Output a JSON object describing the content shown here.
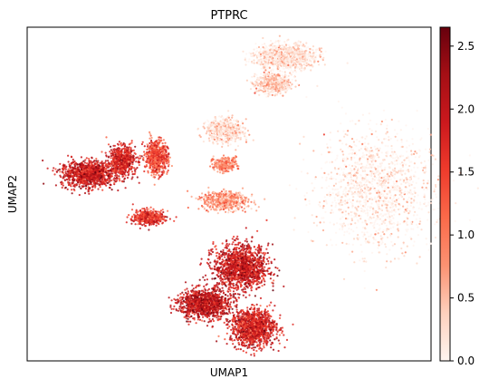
{
  "chart_data": {
    "type": "scatter",
    "title": "PTPRC",
    "xlabel": "UMAP1",
    "ylabel": "UMAP2",
    "grid": false,
    "legend": "colorbar-right",
    "colormap": {
      "name": "Reds",
      "colors": [
        "#fff5f0",
        "#fdd0bd",
        "#fc9272",
        "#fb6a4a",
        "#ef3b2c",
        "#cb181d",
        "#a50f15",
        "#67000d"
      ]
    },
    "colorbar": {
      "range": [
        0,
        2.65
      ],
      "ticks": [
        0.0,
        0.5,
        1.0,
        1.5,
        2.0,
        2.5
      ],
      "tick_labels": [
        "0.0",
        "0.5",
        "1.0",
        "1.5",
        "2.0",
        "2.5"
      ]
    },
    "xlim": [
      0,
      1
    ],
    "ylim": [
      0,
      1
    ],
    "clusters": [
      {
        "id": "left-large",
        "cx": 0.15,
        "cy": 0.56,
        "rx": 0.06,
        "ry": 0.035,
        "expression": 1.9
      },
      {
        "id": "left-wing-top",
        "cx": 0.235,
        "cy": 0.6,
        "rx": 0.03,
        "ry": 0.04,
        "expression": 1.8
      },
      {
        "id": "center-small",
        "cx": 0.32,
        "cy": 0.61,
        "rx": 0.025,
        "ry": 0.045,
        "expression": 1.4
      },
      {
        "id": "left-low",
        "cx": 0.3,
        "cy": 0.43,
        "rx": 0.035,
        "ry": 0.02,
        "expression": 1.6
      },
      {
        "id": "bottom-left",
        "cx": 0.44,
        "cy": 0.17,
        "rx": 0.055,
        "ry": 0.04,
        "expression": 2.0
      },
      {
        "id": "bottom-wing",
        "cx": 0.53,
        "cy": 0.28,
        "rx": 0.06,
        "ry": 0.06,
        "expression": 1.9
      },
      {
        "id": "bottom-lower",
        "cx": 0.56,
        "cy": 0.1,
        "rx": 0.05,
        "ry": 0.05,
        "expression": 1.8
      },
      {
        "id": "right-large",
        "cx": 0.86,
        "cy": 0.51,
        "rx": 0.13,
        "ry": 0.16,
        "expression": 0.05
      },
      {
        "id": "top-right-1",
        "cx": 0.64,
        "cy": 0.91,
        "rx": 0.065,
        "ry": 0.035,
        "expression": 0.15
      },
      {
        "id": "top-right-2",
        "cx": 0.61,
        "cy": 0.83,
        "rx": 0.04,
        "ry": 0.025,
        "expression": 0.3
      },
      {
        "id": "mid-right-small",
        "cx": 0.49,
        "cy": 0.69,
        "rx": 0.04,
        "ry": 0.03,
        "expression": 0.2
      },
      {
        "id": "mid-small-blob",
        "cx": 0.49,
        "cy": 0.59,
        "rx": 0.025,
        "ry": 0.018,
        "expression": 0.9
      },
      {
        "id": "mid-left-blob",
        "cx": 0.49,
        "cy": 0.48,
        "rx": 0.05,
        "ry": 0.025,
        "expression": 0.7
      }
    ]
  }
}
